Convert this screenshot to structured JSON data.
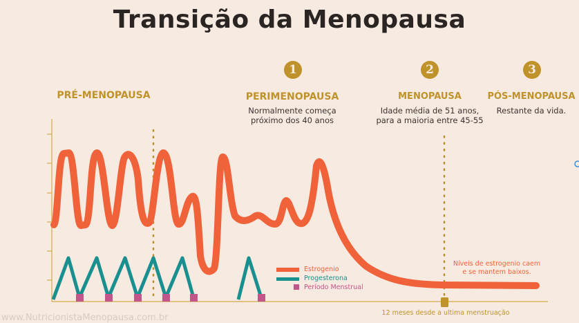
{
  "title": "Transição da Menopausa",
  "phases": [
    {
      "number": "",
      "name": "PRÉ-MENOPAUSA",
      "description": ""
    },
    {
      "number": "1",
      "name": "PERIMENOPAUSA",
      "description": "Normalmente começa próximo dos 40 anos"
    },
    {
      "number": "2",
      "name": "MENOPAUSA",
      "description": "Idade média de 51 anos, para a maioria entre 45-55"
    },
    {
      "number": "3",
      "name": "PÓS-MENOPAUSA",
      "description": "Restante da vida."
    }
  ],
  "legend": [
    {
      "label": "Estrogenio",
      "color": "#f0623a"
    },
    {
      "label": "Progesterona",
      "color": "#1a8f8f"
    },
    {
      "label": "Período Menstrual",
      "color": "#c2558a"
    }
  ],
  "annotations": {
    "low_estrogen": "Níveis de estrogenio caem e se mantem baixos.",
    "twelve_months": "12 meses desde a ultima menstruação"
  },
  "watermark": "www.NutricionistaMenopausa.com.br",
  "colors": {
    "gold": "#c0922a",
    "background": "#f7eae0"
  }
}
